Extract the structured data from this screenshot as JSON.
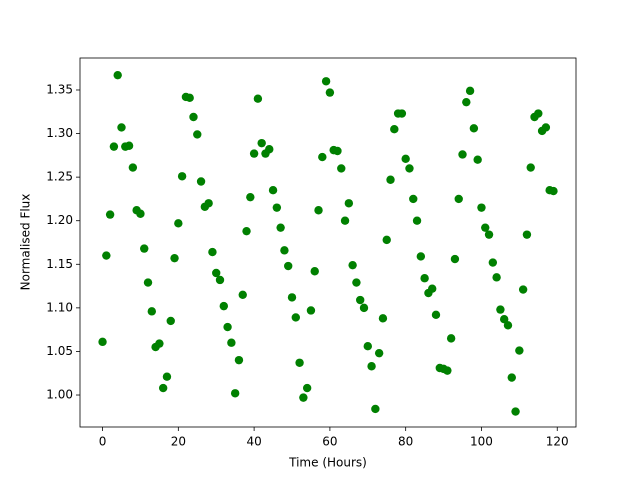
{
  "chart_data": {
    "type": "scatter",
    "x_label": "Time (Hours)",
    "y_label": "Normalised Flux",
    "color": "#008000",
    "xlim": [
      -5.95,
      124.95
    ],
    "ylim": [
      0.9633,
      1.3867
    ],
    "xticks": [
      0,
      20,
      40,
      60,
      80,
      100,
      120
    ],
    "yticks": [
      {
        "value": 1.0,
        "label": "1.00"
      },
      1.05,
      {
        "value": 1.1,
        "label": "1.10"
      },
      1.15,
      {
        "value": 1.2,
        "label": "1.20"
      },
      1.25,
      {
        "value": 1.3,
        "label": "1.30"
      },
      1.35
    ],
    "x": [
      0,
      1,
      2,
      3,
      4,
      5,
      6,
      7,
      8,
      9,
      10,
      11,
      12,
      13,
      14,
      15,
      16,
      17,
      18,
      19,
      20,
      21,
      22,
      23,
      24,
      25,
      26,
      27,
      28,
      29,
      30,
      31,
      32,
      33,
      34,
      35,
      36,
      37,
      38,
      39,
      40,
      41,
      42,
      43,
      44,
      45,
      46,
      47,
      48,
      49,
      50,
      51,
      52,
      53,
      54,
      55,
      56,
      57,
      58,
      59,
      60,
      61,
      62,
      63,
      64,
      65,
      66,
      67,
      68,
      69,
      70,
      71,
      72,
      73,
      74,
      75,
      76,
      77,
      78,
      79,
      80,
      81,
      82,
      83,
      84,
      85,
      86,
      87,
      88,
      89,
      90,
      91,
      92,
      93,
      94,
      95,
      96,
      97,
      98,
      99,
      100,
      101,
      102,
      103,
      104,
      105,
      106,
      107,
      108,
      109,
      110,
      111,
      112,
      113,
      114,
      115,
      116,
      117,
      118,
      119
    ],
    "values": [
      1.061,
      1.16,
      1.207,
      1.285,
      1.367,
      1.307,
      1.285,
      1.286,
      1.261,
      1.212,
      1.208,
      1.168,
      1.129,
      1.096,
      1.055,
      1.059,
      1.008,
      1.021,
      1.085,
      1.157,
      1.197,
      1.251,
      1.342,
      1.341,
      1.319,
      1.299,
      1.245,
      1.216,
      1.22,
      1.164,
      1.14,
      1.132,
      1.102,
      1.078,
      1.06,
      1.002,
      1.04,
      1.115,
      1.188,
      1.227,
      1.277,
      1.34,
      1.289,
      1.277,
      1.282,
      1.235,
      1.215,
      1.192,
      1.166,
      1.148,
      1.112,
      1.089,
      1.037,
      0.997,
      1.008,
      1.097,
      1.142,
      1.212,
      1.273,
      1.36,
      1.347,
      1.281,
      1.28,
      1.26,
      1.2,
      1.22,
      1.149,
      1.129,
      1.109,
      1.1,
      1.056,
      1.033,
      0.984,
      1.048,
      1.088,
      1.178,
      1.247,
      1.305,
      1.323,
      1.323,
      1.271,
      1.26,
      1.225,
      1.2,
      1.159,
      1.134,
      1.117,
      1.122,
      1.092,
      1.031,
      1.03,
      1.028,
      1.065,
      1.156,
      1.225,
      1.276,
      1.336,
      1.349,
      1.306,
      1.27,
      1.215,
      1.192,
      1.184,
      1.152,
      1.135,
      1.098,
      1.087,
      1.08,
      1.02,
      0.981,
      1.051,
      1.121,
      1.184,
      1.261,
      1.319,
      1.323,
      1.303,
      1.307,
      1.235,
      1.234
    ]
  }
}
